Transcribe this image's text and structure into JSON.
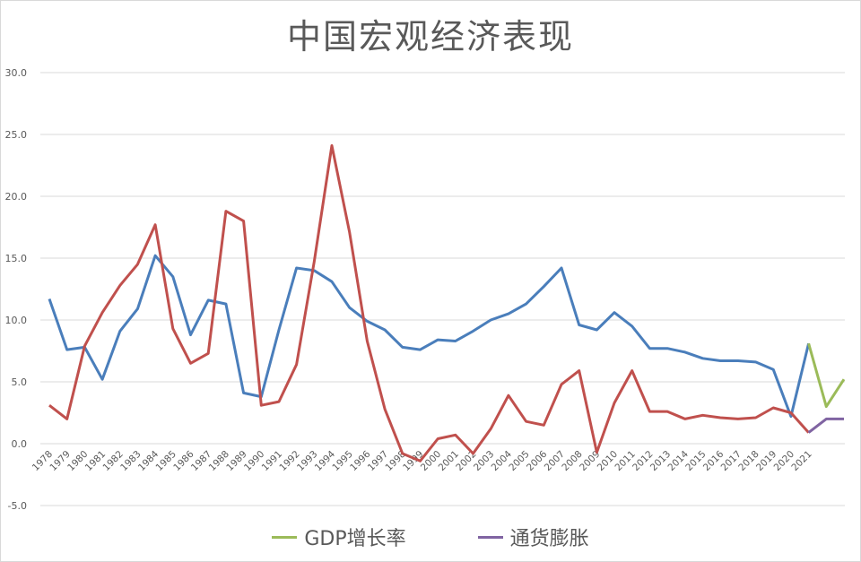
{
  "chart_data": {
    "type": "line",
    "title": "中国宏观经济表现",
    "xlabel": "",
    "ylabel": "",
    "ylim": [
      -5,
      30
    ],
    "y_ticks": [
      "-5.0",
      "0.0",
      "5.0",
      "10.0",
      "15.0",
      "20.0",
      "25.0",
      "30.0"
    ],
    "y_tick_values": [
      -5,
      0,
      5,
      10,
      15,
      20,
      25,
      30
    ],
    "grid": true,
    "legend_position": "bottom",
    "x": [
      1978,
      1979,
      1980,
      1981,
      1982,
      1983,
      1984,
      1985,
      1986,
      1987,
      1988,
      1989,
      1990,
      1991,
      1992,
      1993,
      1994,
      1995,
      1996,
      1997,
      1998,
      1999,
      2000,
      2001,
      2002,
      2003,
      2004,
      2005,
      2006,
      2007,
      2008,
      2009,
      2010,
      2011,
      2012,
      2013,
      2014,
      2015,
      2016,
      2017,
      2018,
      2019,
      2020,
      2021,
      2022,
      2023
    ],
    "x_tick_labels": [
      "1978",
      "1979",
      "1980",
      "1981",
      "1982",
      "1983",
      "1984",
      "1985",
      "1986",
      "1987",
      "1988",
      "1989",
      "1990",
      "1991",
      "1992",
      "1993",
      "1994",
      "1995",
      "1996",
      "1997",
      "1998",
      "1999",
      "2000",
      "2001",
      "2002",
      "2003",
      "2004",
      "2005",
      "2006",
      "2007",
      "2008",
      "2009",
      "2010",
      "2011",
      "2012",
      "2013",
      "2014",
      "2015",
      "2016",
      "2017",
      "2018",
      "2019",
      "2020",
      "2021",
      "",
      ""
    ],
    "series": [
      {
        "color": "#4a7ebb",
        "in_legend": false,
        "values": [
          11.7,
          7.6,
          7.8,
          5.2,
          9.1,
          10.9,
          15.2,
          13.5,
          8.8,
          11.6,
          11.3,
          4.1,
          3.8,
          9.2,
          14.2,
          14.0,
          13.1,
          11.0,
          9.9,
          9.2,
          7.8,
          7.6,
          8.4,
          8.3,
          9.1,
          10.0,
          10.5,
          11.3,
          12.7,
          14.2,
          9.6,
          9.2,
          10.6,
          9.5,
          7.7,
          7.7,
          7.4,
          6.9,
          6.7,
          6.7,
          6.6,
          6.0,
          2.2,
          8.1,
          null,
          null
        ]
      },
      {
        "color": "#c0504d",
        "in_legend": false,
        "values": [
          3.1,
          2.0,
          7.9,
          10.6,
          12.8,
          14.5,
          17.7,
          9.3,
          6.5,
          7.3,
          18.8,
          18.0,
          3.1,
          3.4,
          6.4,
          14.7,
          24.1,
          17.1,
          8.3,
          2.8,
          -0.8,
          -1.4,
          0.4,
          0.7,
          -0.8,
          1.2,
          3.9,
          1.8,
          1.5,
          4.8,
          5.9,
          -0.7,
          3.3,
          5.9,
          2.6,
          2.6,
          2.0,
          2.3,
          2.1,
          2.0,
          2.1,
          2.9,
          2.5,
          0.9,
          null,
          null
        ]
      },
      {
        "name": "GDP增长率",
        "color": "#9bbb59",
        "in_legend": true,
        "values": [
          null,
          null,
          null,
          null,
          null,
          null,
          null,
          null,
          null,
          null,
          null,
          null,
          null,
          null,
          null,
          null,
          null,
          null,
          null,
          null,
          null,
          null,
          null,
          null,
          null,
          null,
          null,
          null,
          null,
          null,
          null,
          null,
          null,
          null,
          null,
          null,
          null,
          null,
          null,
          null,
          null,
          null,
          null,
          8.1,
          3.0,
          5.2
        ]
      },
      {
        "name": "通货膨胀",
        "color": "#8064a2",
        "in_legend": true,
        "values": [
          null,
          null,
          null,
          null,
          null,
          null,
          null,
          null,
          null,
          null,
          null,
          null,
          null,
          null,
          null,
          null,
          null,
          null,
          null,
          null,
          null,
          null,
          null,
          null,
          null,
          null,
          null,
          null,
          null,
          null,
          null,
          null,
          null,
          null,
          null,
          null,
          null,
          null,
          null,
          null,
          null,
          null,
          null,
          0.9,
          2.0,
          2.0
        ]
      }
    ]
  },
  "legend": [
    {
      "label": "GDP增长率",
      "color": "#9bbb59"
    },
    {
      "label": "通货膨胀",
      "color": "#8064a2"
    }
  ]
}
